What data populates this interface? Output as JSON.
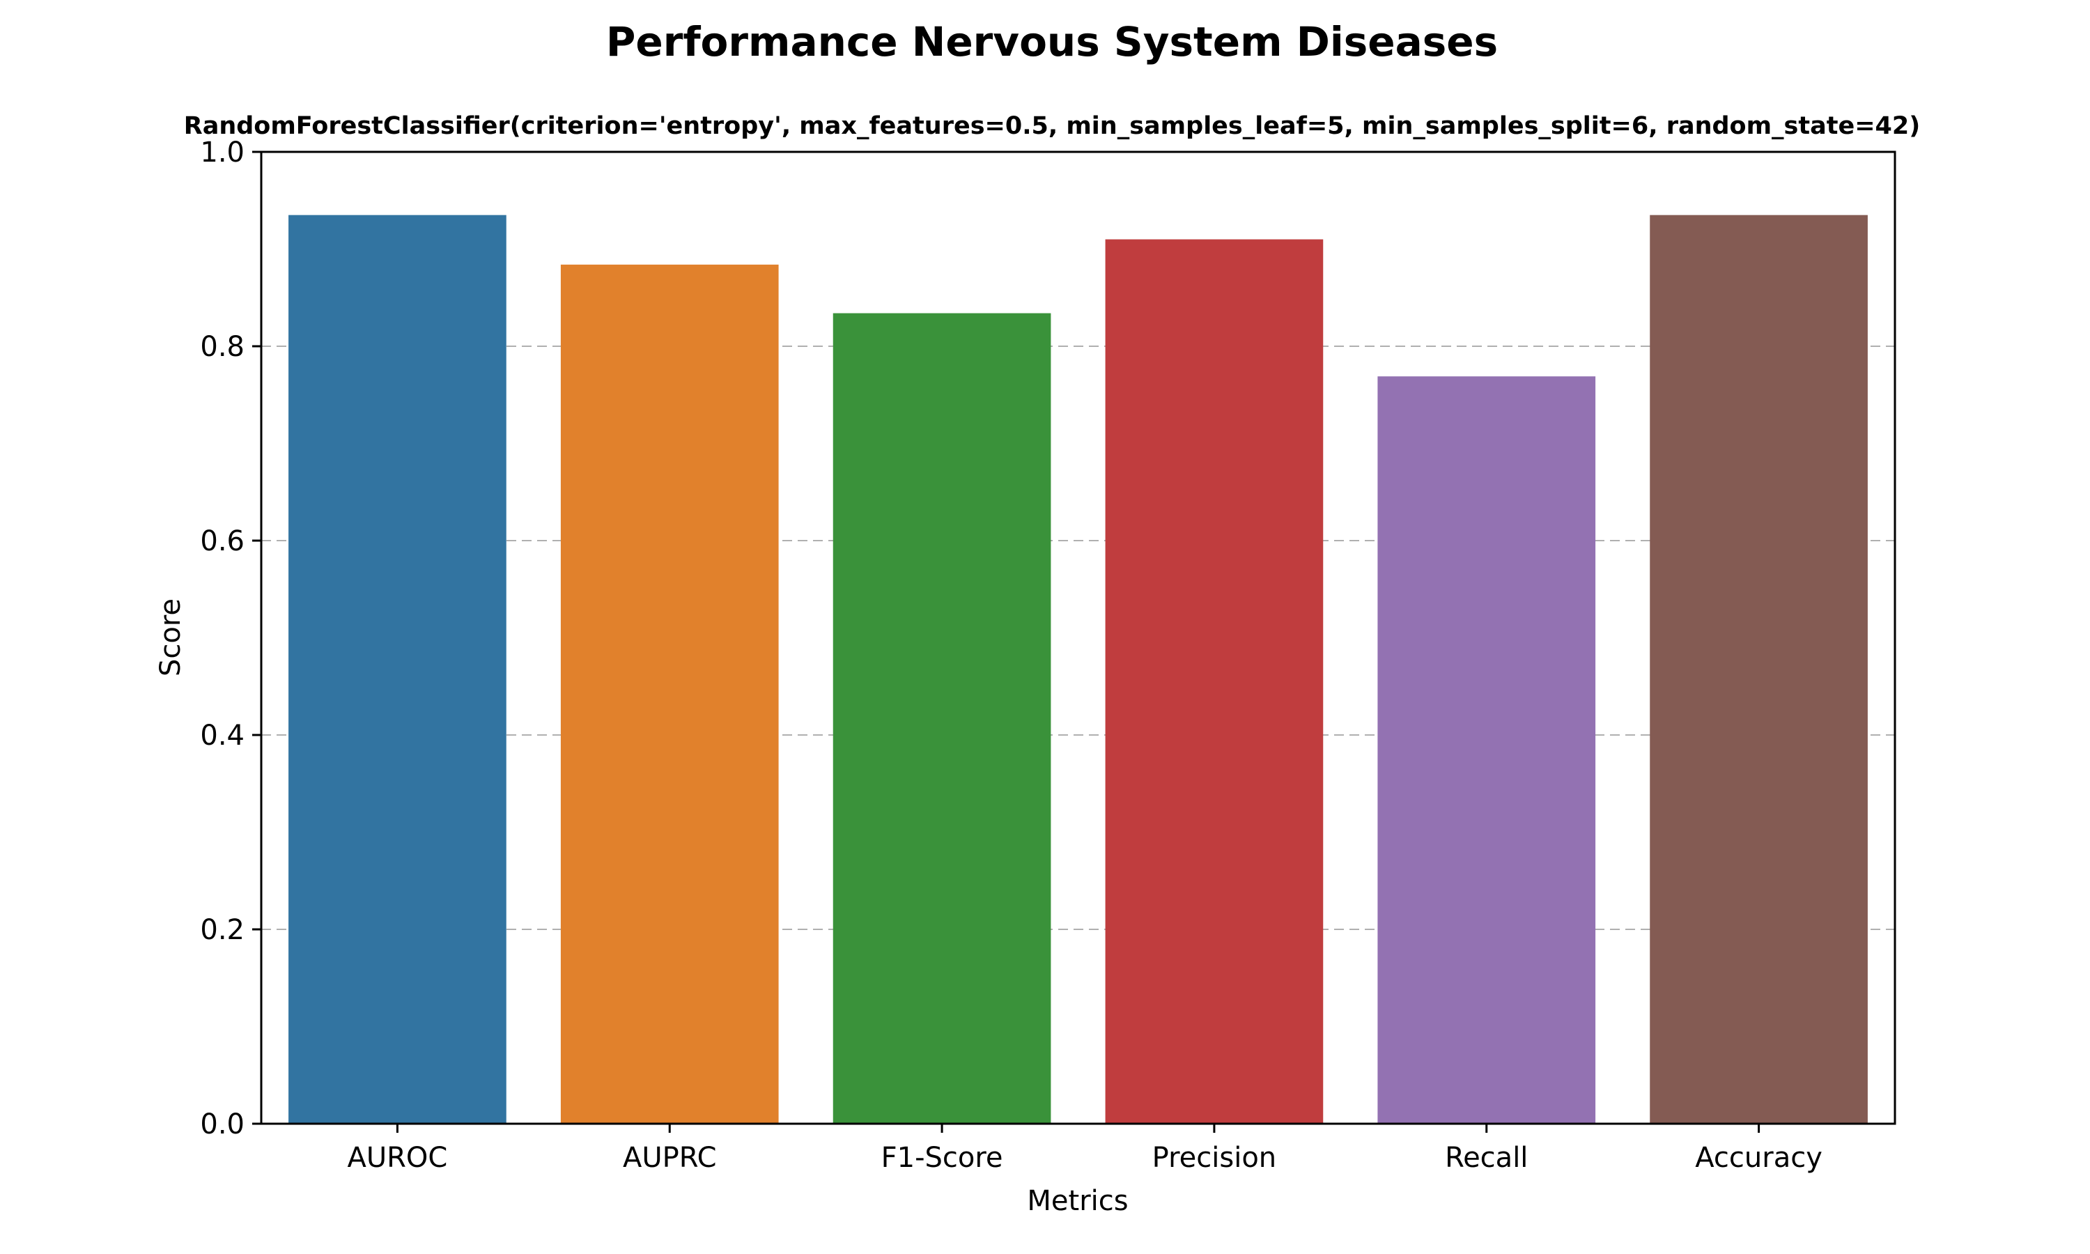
{
  "chart_data": {
    "type": "bar",
    "title": "Performance Nervous System Diseases",
    "subtitle": "RandomForestClassifier(criterion='entropy', max_features=0.5, min_samples_leaf=5, min_samples_split=6, random_state=42)",
    "xlabel": "Metrics",
    "ylabel": "Score",
    "categories": [
      "AUROC",
      "AUPRC",
      "F1-Score",
      "Precision",
      "Recall",
      "Accuracy"
    ],
    "values": [
      0.935,
      0.884,
      0.834,
      0.91,
      0.769,
      0.935
    ],
    "colors": [
      "#3274a1",
      "#e1812c",
      "#3a923a",
      "#c03d3e",
      "#9372b2",
      "#845b53"
    ],
    "ylim": [
      0,
      1.0
    ],
    "yticks": [
      0.0,
      0.2,
      0.4,
      0.6,
      0.8,
      1.0
    ],
    "ytick_labels": [
      "0.0",
      "0.2",
      "0.4",
      "0.6",
      "0.8",
      "1.0"
    ],
    "grid": "y-dashed",
    "legend": "none"
  }
}
